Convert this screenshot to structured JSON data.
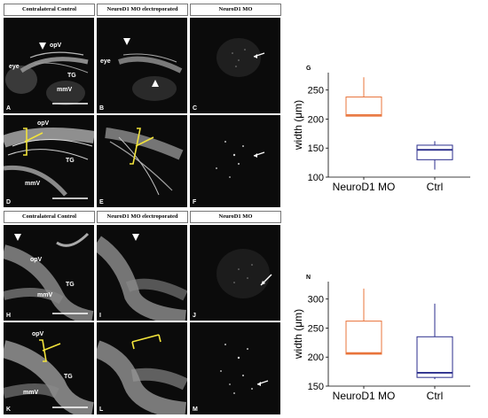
{
  "headers": {
    "control": "Contralateral Control",
    "electroporated": "NeuroD1 MO electroporated",
    "mo": "NeuroD1 MO"
  },
  "panel_labels": [
    "A",
    "B",
    "C",
    "D",
    "E",
    "F",
    "H",
    "I",
    "J",
    "K",
    "L",
    "M"
  ],
  "annotations": {
    "opV": "opV",
    "eye": "eye",
    "TG": "TG",
    "mmV": "mmV"
  },
  "chart_data": [
    {
      "type": "box",
      "label": "G",
      "categories": [
        "NeuroD1 MO",
        "Ctrl"
      ],
      "ylabel": "width (μm)",
      "yticks": [
        100,
        150,
        200,
        250
      ],
      "ylim": [
        100,
        280
      ],
      "colors": [
        "#e8743b",
        "#2b2e8c"
      ],
      "boxes": [
        {
          "min": 205,
          "q1": 205,
          "median": 207,
          "q3": 238,
          "max": 272
        },
        {
          "min": 113,
          "q1": 130,
          "median": 147,
          "q3": 155,
          "max": 162
        }
      ]
    },
    {
      "type": "box",
      "label": "N",
      "categories": [
        "NeuroD1 MO",
        "Ctrl"
      ],
      "ylabel": "width (μm)",
      "yticks": [
        150,
        200,
        250,
        300
      ],
      "ylim": [
        150,
        330
      ],
      "colors": [
        "#e8743b",
        "#2b2e8c"
      ],
      "boxes": [
        {
          "min": 205,
          "q1": 205,
          "median": 207,
          "q3": 262,
          "max": 318
        },
        {
          "min": 162,
          "q1": 165,
          "median": 173,
          "q3": 235,
          "max": 292
        }
      ]
    }
  ]
}
